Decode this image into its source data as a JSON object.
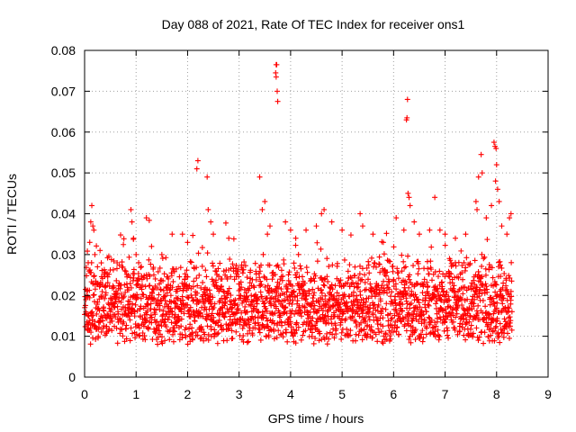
{
  "chart_data": {
    "type": "scatter",
    "title": "Day 088 of 2021, Rate Of TEC Index for receiver ons1",
    "xlabel": "GPS time / hours",
    "ylabel": "ROTI / TECUs",
    "xlim": [
      0,
      9
    ],
    "ylim": [
      0,
      0.08
    ],
    "xticks": [
      "0",
      "1",
      "2",
      "3",
      "4",
      "5",
      "6",
      "7",
      "8",
      "9"
    ],
    "yticks": [
      "0",
      "0.01",
      "0.02",
      "0.03",
      "0.04",
      "0.05",
      "0.06",
      "0.07",
      "0.08"
    ],
    "grid": true,
    "marker": "plus",
    "color": "#ff0000",
    "data_x_range": [
      0,
      8.3
    ],
    "baseline_band": [
      0.008,
      0.03
    ],
    "series": [
      {
        "name": "ROTI",
        "points": [
          [
            0.05,
            0.013
          ],
          [
            0.07,
            0.028
          ],
          [
            0.1,
            0.033
          ],
          [
            0.12,
            0.038
          ],
          [
            0.14,
            0.042
          ],
          [
            0.16,
            0.037
          ],
          [
            0.18,
            0.036
          ],
          [
            0.2,
            0.03
          ],
          [
            0.25,
            0.027
          ],
          [
            0.3,
            0.031
          ],
          [
            0.4,
            0.022
          ],
          [
            0.9,
            0.041
          ],
          [
            0.92,
            0.038
          ],
          [
            0.95,
            0.034
          ],
          [
            1.0,
            0.03
          ],
          [
            1.05,
            0.028
          ],
          [
            1.2,
            0.039
          ],
          [
            1.3,
            0.032
          ],
          [
            1.5,
            0.03
          ],
          [
            1.7,
            0.035
          ],
          [
            1.9,
            0.035
          ],
          [
            2.0,
            0.033
          ],
          [
            2.2,
            0.053
          ],
          [
            2.18,
            0.051
          ],
          [
            2.38,
            0.049
          ],
          [
            2.4,
            0.041
          ],
          [
            2.45,
            0.038
          ],
          [
            2.5,
            0.035
          ],
          [
            2.8,
            0.034
          ],
          [
            3.4,
            0.049
          ],
          [
            3.5,
            0.043
          ],
          [
            3.45,
            0.041
          ],
          [
            3.55,
            0.035
          ],
          [
            3.6,
            0.037
          ],
          [
            3.72,
            0.0765
          ],
          [
            3.73,
            0.0765
          ],
          [
            3.71,
            0.0745
          ],
          [
            3.72,
            0.0735
          ],
          [
            3.74,
            0.07
          ],
          [
            3.75,
            0.0675
          ],
          [
            3.9,
            0.038
          ],
          [
            4.0,
            0.036
          ],
          [
            4.1,
            0.034
          ],
          [
            4.3,
            0.036
          ],
          [
            4.5,
            0.037
          ],
          [
            4.6,
            0.04
          ],
          [
            4.65,
            0.041
          ],
          [
            4.8,
            0.038
          ],
          [
            5.0,
            0.036
          ],
          [
            5.35,
            0.04
          ],
          [
            5.4,
            0.037
          ],
          [
            5.6,
            0.035
          ],
          [
            5.8,
            0.033
          ],
          [
            6.05,
            0.039
          ],
          [
            6.2,
            0.036
          ],
          [
            6.27,
            0.068
          ],
          [
            6.26,
            0.0635
          ],
          [
            6.25,
            0.063
          ],
          [
            6.28,
            0.045
          ],
          [
            6.3,
            0.044
          ],
          [
            6.32,
            0.042
          ],
          [
            6.4,
            0.038
          ],
          [
            6.5,
            0.035
          ],
          [
            6.7,
            0.036
          ],
          [
            6.8,
            0.044
          ],
          [
            6.9,
            0.036
          ],
          [
            7.0,
            0.035
          ],
          [
            7.2,
            0.034
          ],
          [
            7.4,
            0.035
          ],
          [
            7.6,
            0.043
          ],
          [
            7.62,
            0.041
          ],
          [
            7.65,
            0.049
          ],
          [
            7.7,
            0.0545
          ],
          [
            7.72,
            0.05
          ],
          [
            7.8,
            0.039
          ],
          [
            7.9,
            0.042
          ],
          [
            7.95,
            0.0575
          ],
          [
            7.97,
            0.0565
          ],
          [
            7.99,
            0.056
          ],
          [
            8.0,
            0.052
          ],
          [
            7.98,
            0.048
          ],
          [
            8.02,
            0.046
          ],
          [
            8.05,
            0.043
          ],
          [
            8.1,
            0.037
          ],
          [
            8.2,
            0.035
          ],
          [
            8.25,
            0.039
          ],
          [
            8.28,
            0.04
          ]
        ]
      }
    ]
  }
}
